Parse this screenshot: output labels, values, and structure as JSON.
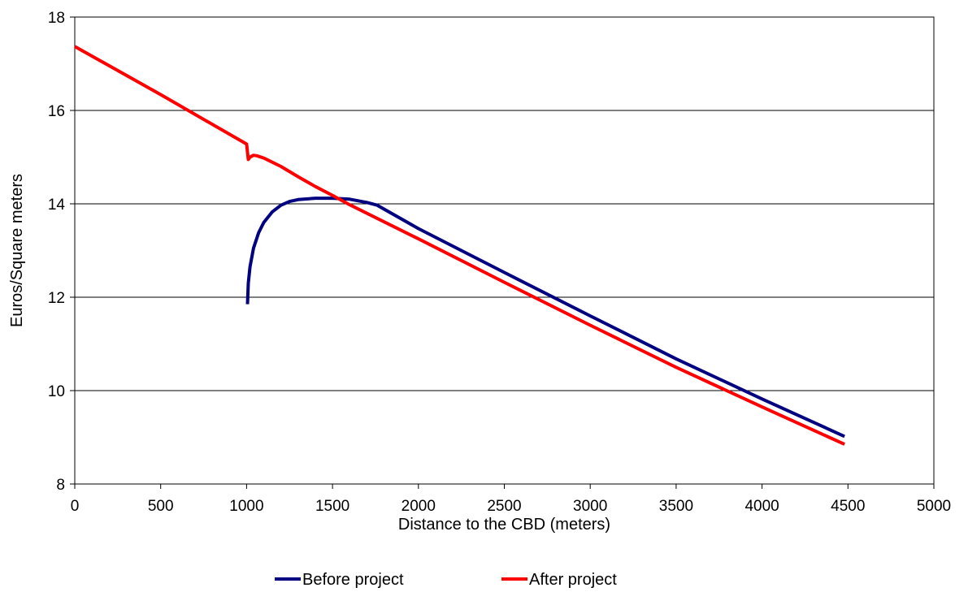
{
  "chart_data": {
    "type": "line",
    "title": "",
    "xlabel": "Distance to the CBD (meters)",
    "ylabel": "Euros/Square meters",
    "xlim": [
      0,
      5000
    ],
    "ylim": [
      8,
      18
    ],
    "xticks": [
      0,
      500,
      1000,
      1500,
      2000,
      2500,
      3000,
      3500,
      4000,
      4500,
      5000
    ],
    "yticks": [
      8,
      10,
      12,
      14,
      16,
      18
    ],
    "xtick_labels": [
      "0",
      "500",
      "1000",
      "1500",
      "2000",
      "2500",
      "3000",
      "3500",
      "4000",
      "4500",
      "5000"
    ],
    "ytick_labels": [
      "8",
      "10",
      "12",
      "14",
      "16",
      "18"
    ],
    "grid": "horizontal",
    "legend_position": "bottom",
    "series": [
      {
        "name": "Before project",
        "color": "#000080",
        "x": [
          1005,
          1010,
          1020,
          1040,
          1070,
          1100,
          1150,
          1200,
          1250,
          1300,
          1400,
          1500,
          1600,
          1700,
          1760,
          2000,
          2500,
          3000,
          3500,
          4000,
          4480
        ],
        "y": [
          11.85,
          12.3,
          12.65,
          13.05,
          13.38,
          13.6,
          13.83,
          13.97,
          14.05,
          14.09,
          14.12,
          14.12,
          14.1,
          14.03,
          13.97,
          13.47,
          12.53,
          11.6,
          10.68,
          9.82,
          9.02
        ]
      },
      {
        "name": "After project",
        "color": "#ff0000",
        "x": [
          0,
          500,
          1000,
          1010,
          1020,
          1040,
          1060,
          1100,
          1200,
          1300,
          1400,
          1500,
          1600,
          2000,
          2500,
          3000,
          3500,
          4000,
          4480
        ],
        "y": [
          17.37,
          16.34,
          15.28,
          14.95,
          15.0,
          15.04,
          15.03,
          14.98,
          14.8,
          14.58,
          14.37,
          14.18,
          13.98,
          13.25,
          12.32,
          11.4,
          10.5,
          9.65,
          8.85
        ]
      }
    ]
  }
}
